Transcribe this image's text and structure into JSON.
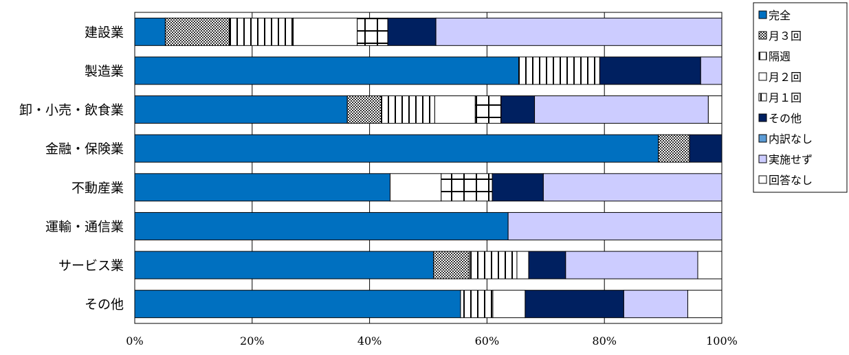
{
  "chart_data": {
    "type": "bar",
    "orientation": "horizontal",
    "stacked": "percent",
    "categories": [
      "建設業",
      "製造業",
      "卸・小売・飲食業",
      "金融・保険業",
      "不動産業",
      "運輸・通信業",
      "サービス業",
      "その他"
    ],
    "series": [
      {
        "name": "完全",
        "color": "#0070c0",
        "pattern": "solid",
        "values": [
          5.2,
          65.4,
          36.2,
          89.2,
          43.5,
          63.6,
          50.9,
          55.5
        ]
      },
      {
        "name": "月３回",
        "color": "#404040",
        "pattern": "checker",
        "values": [
          10.9,
          0,
          5.8,
          5.3,
          0,
          0,
          6.1,
          0
        ]
      },
      {
        "name": "隔週",
        "color": "#000000",
        "pattern": "vertical",
        "values": [
          10.9,
          13.8,
          9.1,
          0,
          0,
          0,
          8.1,
          5.5
        ]
      },
      {
        "name": "月２回",
        "color": "#ffffff",
        "pattern": "blank",
        "values": [
          10.9,
          0,
          6.9,
          0,
          8.7,
          0,
          2.0,
          5.5
        ]
      },
      {
        "name": "月１回",
        "color": "#000000",
        "pattern": "grid",
        "values": [
          5.2,
          0,
          4.4,
          0,
          8.7,
          0,
          0,
          0
        ]
      },
      {
        "name": "その他",
        "color": "#002060",
        "pattern": "solid",
        "values": [
          8.2,
          17.2,
          5.7,
          5.5,
          8.7,
          0,
          6.3,
          16.8
        ]
      },
      {
        "name": "内訳なし",
        "color": "#5b9bd5",
        "pattern": "solid",
        "values": [
          0,
          0,
          0,
          0,
          0,
          0,
          0,
          0
        ]
      },
      {
        "name": "実施せず",
        "color": "#ccccff",
        "pattern": "solid",
        "values": [
          48.7,
          3.6,
          29.6,
          0,
          30.4,
          36.4,
          22.5,
          10.9
        ]
      },
      {
        "name": "回答なし",
        "color": "#ffffff",
        "pattern": "blank",
        "values": [
          0,
          0,
          2.3,
          0,
          0,
          0,
          4.1,
          5.8
        ]
      }
    ],
    "xlim": [
      0,
      100
    ],
    "xticks": [
      "0%",
      "20%",
      "40%",
      "60%",
      "80%",
      "100%"
    ],
    "grid": "vertical",
    "legend": "right"
  }
}
